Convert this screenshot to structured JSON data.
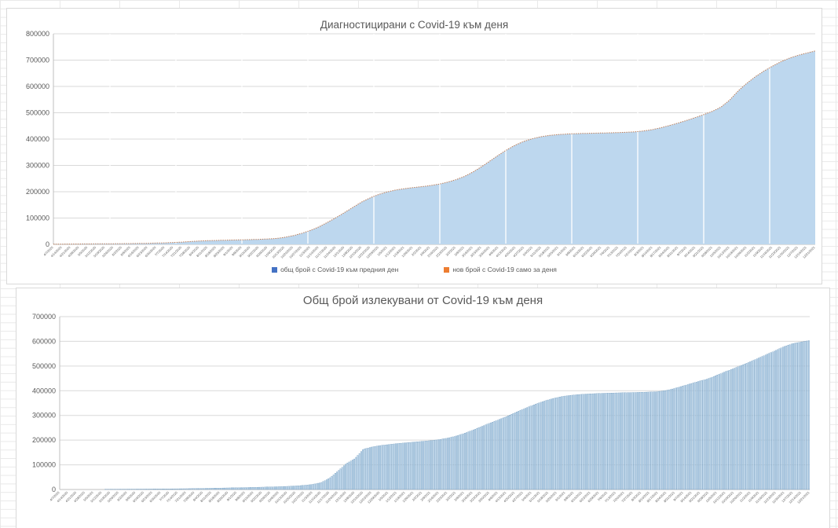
{
  "workbook": {
    "gridline_color": "#e9e9e9",
    "text_color": "#595959",
    "chart_border_color": "#d9d9d9",
    "plot_gridline_color": "#d9d9d9"
  },
  "chart_data": [
    {
      "type": "area",
      "title": "Диагностицирани с Covid-19 към деня",
      "ylim": [
        0,
        800000
      ],
      "grid": true,
      "legend_position": "bottom",
      "y_tick_labels": [
        "0",
        "100000",
        "200000",
        "300000",
        "400000",
        "500000",
        "600000",
        "700000",
        "800000"
      ],
      "x": [
        "4/7/2020",
        "4/14/2020",
        "4/21/2020",
        "4/28/2020",
        "5/5/2020",
        "5/12/2020",
        "5/19/2020",
        "5/26/2020",
        "6/2/2020",
        "6/9/2020",
        "6/16/2020",
        "6/23/2020",
        "6/30/2020",
        "7/7/2020",
        "7/14/2020",
        "7/21/2020",
        "7/28/2020",
        "8/4/2020",
        "8/11/2020",
        "8/18/2020",
        "8/25/2020",
        "9/1/2020",
        "9/8/2020",
        "9/15/2020",
        "9/22/2020",
        "9/29/2020",
        "10/6/2020",
        "10/13/2020",
        "10/20/2020",
        "10/27/2020",
        "11/3/2020",
        "11/10/2020",
        "11/17/2020",
        "11/24/2020",
        "12/1/2020",
        "12/8/2020",
        "12/15/2020",
        "12/22/2020",
        "12/29/2020",
        "1/5/2021",
        "1/12/2021",
        "1/19/2021",
        "1/26/2021",
        "2/2/2021",
        "2/9/2021",
        "2/16/2021",
        "2/23/2021",
        "3/2/2021",
        "3/9/2021",
        "3/16/2021",
        "3/23/2021",
        "3/30/2021",
        "4/6/2021",
        "4/13/2021",
        "4/20/2021",
        "4/27/2021",
        "5/4/2021",
        "5/11/2021",
        "5/18/2021",
        "5/25/2021",
        "6/1/2021",
        "6/8/2021",
        "6/15/2021",
        "6/22/2021",
        "6/29/2021",
        "7/6/2021",
        "7/13/2021",
        "7/20/2021",
        "7/27/2021",
        "8/3/2021",
        "8/10/2021",
        "8/17/2021",
        "8/24/2021",
        "8/31/2021",
        "9/7/2021",
        "9/14/2021",
        "9/21/2021",
        "9/28/2021",
        "10/5/2021",
        "10/12/2021",
        "10/19/2021",
        "10/26/2021",
        "11/2/2021",
        "11/9/2021",
        "11/16/2021",
        "11/23/2021",
        "11/30/2021",
        "12/7/2021",
        "12/14/2021",
        "12/21/2021"
      ],
      "series": [
        {
          "name": "общ брой с Covid-19 към предния ден",
          "legend_color": "#4472c4",
          "area_fill": "#bdd7ee",
          "values": [
            600,
            900,
            1300,
            1600,
            1800,
            2000,
            2300,
            2500,
            2800,
            3100,
            3500,
            4100,
            4900,
            5700,
            7000,
            8700,
            10700,
            12700,
            14000,
            15000,
            15800,
            16500,
            17200,
            18100,
            19000,
            20500,
            22300,
            26600,
            33000,
            41800,
            52800,
            66100,
            83300,
            101300,
            120700,
            140900,
            160700,
            176700,
            189800,
            199300,
            206600,
            211700,
            215700,
            219200,
            223200,
            228500,
            235900,
            245500,
            258000,
            274700,
            294600,
            316700,
            339100,
            359900,
            377900,
            391700,
            401900,
            409300,
            414200,
            417300,
            419300,
            420700,
            421600,
            422300,
            423000,
            423800,
            424700,
            425900,
            427800,
            431100,
            436200,
            443300,
            451800,
            461200,
            471200,
            481900,
            493400,
            505600,
            521900,
            548000,
            583000,
            612000,
            637000,
            658400,
            677100,
            694100,
            707800,
            718300,
            726800,
            734800
          ]
        },
        {
          "name": "нов брой с Covid-19 само за деня",
          "legend_color": "#ed7d31",
          "edge_color": "#c07b52",
          "rendering_note": "daily new cases stacked on top; appears as thin dotted edge along the area top",
          "values": [
            86,
            43,
            57,
            43,
            29,
            29,
            43,
            29,
            43,
            43,
            57,
            86,
            114,
            114,
            186,
            243,
            286,
            286,
            186,
            143,
            114,
            100,
            100,
            129,
            129,
            214,
            257,
            614,
            914,
            1257,
            1571,
            1900,
            2457,
            2571,
            2771,
            2886,
            2829,
            2286,
            1871,
            1357,
            1043,
            729,
            571,
            500,
            571,
            757,
            1057,
            1371,
            1786,
            2386,
            2843,
            3157,
            3200,
            2971,
            2571,
            1971,
            1457,
            1057,
            700,
            443,
            286,
            200,
            129,
            100,
            100,
            114,
            129,
            171,
            271,
            471,
            729,
            1014,
            1214,
            1343,
            1429,
            1529,
            1643,
            1743,
            2329,
            3729,
            5000,
            4143,
            3571,
            3057,
            2671,
            2429,
            1957,
            1500,
            1214,
            1143
          ]
        }
      ]
    },
    {
      "type": "bar",
      "title": "Общ брой излекувани от Covid-19 към деня",
      "ylim": [
        0,
        700000
      ],
      "grid": true,
      "legend_position": "none",
      "y_tick_labels": [
        "0",
        "100000",
        "200000",
        "300000",
        "400000",
        "500000",
        "600000",
        "700000"
      ],
      "x": [
        "4/7/2020",
        "4/14/2020",
        "4/21/2020",
        "4/28/2020",
        "5/5/2020",
        "5/12/2020",
        "5/19/2020",
        "5/26/2020",
        "6/2/2020",
        "6/9/2020",
        "6/16/2020",
        "6/23/2020",
        "6/30/2020",
        "7/7/2020",
        "7/14/2020",
        "7/21/2020",
        "7/28/2020",
        "8/4/2020",
        "8/11/2020",
        "8/18/2020",
        "8/25/2020",
        "9/1/2020",
        "9/8/2020",
        "9/15/2020",
        "9/22/2020",
        "9/29/2020",
        "10/6/2020",
        "10/13/2020",
        "10/20/2020",
        "10/27/2020",
        "11/3/2020",
        "11/10/2020",
        "11/17/2020",
        "11/24/2020",
        "12/1/2020",
        "12/8/2020",
        "12/15/2020",
        "12/22/2020",
        "12/29/2020",
        "1/5/2021",
        "1/12/2021",
        "1/19/2021",
        "1/26/2021",
        "2/2/2021",
        "2/9/2021",
        "2/16/2021",
        "2/23/2021",
        "3/2/2021",
        "3/9/2021",
        "3/16/2021",
        "3/23/2021",
        "3/30/2021",
        "4/6/2021",
        "4/13/2021",
        "4/20/2021",
        "4/27/2021",
        "5/4/2021",
        "5/11/2021",
        "5/18/2021",
        "5/25/2021",
        "6/1/2021",
        "6/8/2021",
        "6/15/2021",
        "6/22/2021",
        "6/29/2021",
        "7/6/2021",
        "7/13/2021",
        "7/20/2021",
        "7/27/2021",
        "8/3/2021",
        "8/10/2021",
        "8/17/2021",
        "8/24/2021",
        "8/31/2021",
        "9/7/2021",
        "9/14/2021",
        "9/21/2021",
        "9/28/2021",
        "10/5/2021",
        "10/12/2021",
        "10/19/2021",
        "10/26/2021",
        "11/2/2021",
        "11/9/2021",
        "11/16/2021",
        "11/23/2021",
        "11/30/2021",
        "12/7/2021",
        "12/14/2021",
        "12/21/2021"
      ],
      "series": [
        {
          "name": "общ брой излекувани",
          "bar_fill": "#c0d9ee",
          "bar_edge": "#4f82ad",
          "values": [
            200,
            300,
            400,
            500,
            700,
            900,
            1100,
            1300,
            1500,
            1700,
            1900,
            2100,
            2400,
            2700,
            3000,
            3400,
            3900,
            4500,
            5200,
            5900,
            6600,
            7300,
            8000,
            8800,
            9600,
            10500,
            11500,
            12800,
            14500,
            17000,
            21000,
            28000,
            46000,
            75000,
            105000,
            125000,
            163000,
            172000,
            178000,
            182000,
            186000,
            189000,
            192000,
            195000,
            198000,
            202000,
            208000,
            216000,
            227000,
            240000,
            254000,
            268000,
            281000,
            295000,
            310000,
            325000,
            339000,
            352000,
            363000,
            372000,
            378500,
            382500,
            385500,
            387500,
            389000,
            390200,
            391200,
            392000,
            392800,
            393600,
            394800,
            396200,
            401000,
            409000,
            419000,
            429000,
            439000,
            448000,
            462000,
            476000,
            489000,
            503000,
            517000,
            532000,
            547000,
            562000,
            578000,
            590000,
            597000,
            603000
          ]
        }
      ]
    }
  ]
}
